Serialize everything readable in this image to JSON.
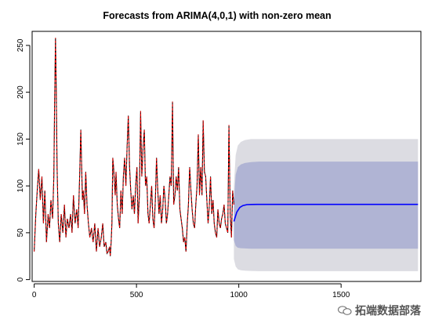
{
  "chart_data": {
    "type": "line",
    "title": "Forecasts from ARIMA(4,0,1) with non-zero mean",
    "xlabel": "",
    "ylabel": "",
    "xlim": [
      -10,
      1890
    ],
    "ylim": [
      -2,
      265
    ],
    "x_ticks": [
      0,
      500,
      1000,
      1500
    ],
    "y_ticks": [
      0,
      50,
      100,
      150,
      200,
      250
    ],
    "grid": false,
    "legend": "none",
    "colors": {
      "observed": "#000000",
      "fitted": "#ff0000",
      "forecast_mean": "#0000ff",
      "band_80": "#b0b4d4",
      "band_95": "#dcdce2"
    },
    "series": [
      {
        "role": "observed_and_fitted",
        "x": [
          0,
          8,
          15,
          22,
          30,
          38,
          45,
          52,
          60,
          68,
          75,
          82,
          90,
          96,
          100,
          104,
          108,
          112,
          118,
          125,
          132,
          140,
          148,
          155,
          162,
          170,
          178,
          185,
          192,
          200,
          208,
          215,
          222,
          228,
          232,
          236,
          240,
          246,
          252,
          258,
          265,
          272,
          280,
          288,
          296,
          304,
          312,
          320,
          328,
          335,
          342,
          350,
          356,
          362,
          368,
          372,
          376,
          380,
          384,
          388,
          392,
          396,
          400,
          406,
          412,
          418,
          424,
          430,
          436,
          442,
          448,
          454,
          460,
          466,
          472,
          478,
          484,
          490,
          496,
          502,
          508,
          514,
          520,
          526,
          532,
          538,
          544,
          550,
          556,
          562,
          568,
          574,
          580,
          586,
          592,
          598,
          604,
          610,
          616,
          622,
          628,
          634,
          640,
          646,
          652,
          658,
          664,
          670,
          676,
          682,
          688,
          694,
          700,
          706,
          712,
          718,
          724,
          730,
          736,
          742,
          748,
          754,
          760,
          766,
          772,
          778,
          784,
          790,
          796,
          802,
          808,
          814,
          820,
          826,
          832,
          838,
          844,
          850,
          856,
          862,
          868,
          874,
          880,
          886,
          892,
          898,
          904,
          910,
          916,
          922,
          928,
          934,
          940,
          946,
          952,
          958,
          964,
          970,
          976
        ],
        "y": [
          30,
          70,
          95,
          118,
          85,
          110,
          60,
          95,
          40,
          70,
          55,
          85,
          65,
          110,
          190,
          258,
          200,
          120,
          60,
          40,
          70,
          50,
          80,
          45,
          65,
          55,
          70,
          50,
          90,
          60,
          75,
          55,
          110,
          160,
          120,
          85,
          95,
          70,
          115,
          80,
          60,
          45,
          55,
          40,
          60,
          30,
          55,
          35,
          45,
          60,
          35,
          40,
          28,
          30,
          35,
          25,
          40,
          60,
          130,
          120,
          105,
          90,
          115,
          80,
          65,
          55,
          95,
          70,
          110,
          130,
          100,
          140,
          175,
          120,
          95,
          75,
          90,
          70,
          100,
          120,
          60,
          90,
          180,
          110,
          140,
          160,
          100,
          110,
          70,
          60,
          80,
          100,
          65,
          55,
          85,
          130,
          95,
          70,
          90,
          60,
          75,
          100,
          85,
          60,
          70,
          90,
          110,
          100,
          190,
          80,
          90,
          110,
          95,
          120,
          75,
          65,
          55,
          40,
          45,
          30,
          60,
          80,
          120,
          95,
          75,
          60,
          55,
          80,
          100,
          155,
          90,
          120,
          90,
          170,
          115,
          110,
          85,
          60,
          80,
          110,
          70,
          85,
          60,
          50,
          45,
          75,
          60,
          55,
          65,
          70,
          80,
          60,
          55,
          50,
          165,
          70,
          45,
          95,
          80
        ]
      },
      {
        "role": "forecast_mean",
        "x": [
          976,
          990,
          1005,
          1020,
          1040,
          1060,
          1090,
          1130,
          1200,
          1300,
          1400,
          1500,
          1600,
          1700,
          1800,
          1876
        ],
        "y": [
          62,
          72,
          77,
          79,
          80,
          80.2,
          80.3,
          80.3,
          80.3,
          80.3,
          80.3,
          80.3,
          80.3,
          80.3,
          80.3,
          80.3
        ]
      }
    ],
    "bands": [
      {
        "level": "95",
        "x": [
          976,
          985,
          995,
          1010,
          1030,
          1060,
          1100,
          1200,
          1400,
          1600,
          1876
        ],
        "lower": [
          22,
          14,
          11,
          10,
          9.5,
          9.2,
          9.0,
          9.0,
          9.0,
          9.0,
          9.0
        ],
        "upper": [
          100,
          133,
          143,
          147,
          149,
          150,
          150,
          150,
          150,
          150,
          150
        ]
      },
      {
        "level": "80",
        "x": [
          976,
          985,
          995,
          1010,
          1030,
          1060,
          1100,
          1200,
          1400,
          1600,
          1876
        ],
        "lower": [
          42,
          36,
          34,
          33.5,
          33.2,
          33,
          33,
          33,
          33,
          33,
          33
        ],
        "upper": [
          84,
          112,
          120,
          123,
          124.5,
          125.5,
          126,
          126,
          126,
          126,
          126
        ]
      }
    ]
  },
  "watermark": {
    "text": "拓端数据部落",
    "icon": "wechat-icon"
  }
}
